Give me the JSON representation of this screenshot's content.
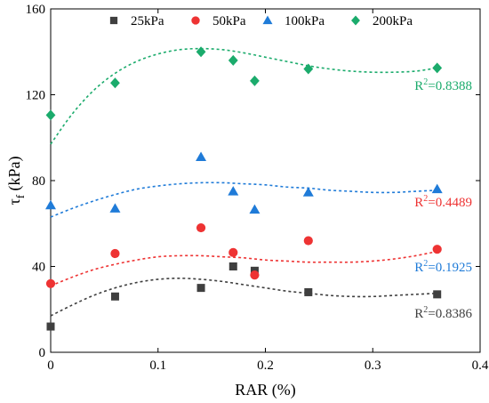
{
  "chart_data": {
    "type": "scatter",
    "xlabel": "RAR (%)",
    "ylabel": "τf (kPa)",
    "ylabel_main": "τ",
    "ylabel_sub": "f",
    "ylabel_unit": " (kPa)",
    "xlim": [
      0,
      0.4
    ],
    "ylim": [
      0,
      160
    ],
    "x_ticks": [
      "0",
      "0.1",
      "0.2",
      "0.3",
      "0.4"
    ],
    "y_ticks": [
      "0",
      "40",
      "80",
      "120",
      "160"
    ],
    "grid": false,
    "legend_position": "top",
    "series": [
      {
        "name": "25kPa",
        "marker": "square",
        "color": "#3f3f3f",
        "x": [
          0,
          0.06,
          0.14,
          0.17,
          0.19,
          0.24,
          0.36
        ],
        "y": [
          12,
          26,
          30,
          40,
          38,
          28,
          27
        ],
        "fit": [
          [
            0,
            17
          ],
          [
            0.02,
            22
          ],
          [
            0.04,
            26.5
          ],
          [
            0.06,
            30
          ],
          [
            0.08,
            32.5
          ],
          [
            0.1,
            34
          ],
          [
            0.12,
            34.5
          ],
          [
            0.14,
            34
          ],
          [
            0.16,
            33
          ],
          [
            0.18,
            31.5
          ],
          [
            0.2,
            30
          ],
          [
            0.22,
            28.5
          ],
          [
            0.24,
            27.5
          ],
          [
            0.26,
            26.5
          ],
          [
            0.28,
            26
          ],
          [
            0.3,
            26
          ],
          [
            0.32,
            26.5
          ],
          [
            0.34,
            27
          ],
          [
            0.36,
            27.5
          ]
        ],
        "r2_base": "R",
        "r2_exp": "2",
        "r2_value": "=0.8386"
      },
      {
        "name": "50kPa",
        "marker": "circle",
        "color": "#ee3333",
        "x": [
          0,
          0.06,
          0.14,
          0.17,
          0.19,
          0.24,
          0.36
        ],
        "y": [
          32,
          46,
          58,
          46.5,
          36,
          52,
          48
        ],
        "fit": [
          [
            0,
            31
          ],
          [
            0.02,
            35
          ],
          [
            0.04,
            38.5
          ],
          [
            0.06,
            41
          ],
          [
            0.08,
            43
          ],
          [
            0.1,
            44.5
          ],
          [
            0.12,
            45
          ],
          [
            0.14,
            45
          ],
          [
            0.16,
            44.5
          ],
          [
            0.18,
            44
          ],
          [
            0.2,
            43
          ],
          [
            0.22,
            42.5
          ],
          [
            0.24,
            42
          ],
          [
            0.26,
            42
          ],
          [
            0.28,
            42
          ],
          [
            0.3,
            42.5
          ],
          [
            0.32,
            43.5
          ],
          [
            0.34,
            45
          ],
          [
            0.36,
            47
          ]
        ],
        "r2_base": "R",
        "r2_exp": "2",
        "r2_value": "=0.4489"
      },
      {
        "name": "100kPa",
        "marker": "triangle",
        "color": "#1f7bd8",
        "x": [
          0,
          0.06,
          0.14,
          0.17,
          0.19,
          0.24,
          0.36
        ],
        "y": [
          68.5,
          67,
          91,
          75,
          66.5,
          74.5,
          76
        ],
        "fit": [
          [
            0,
            63
          ],
          [
            0.02,
            67
          ],
          [
            0.04,
            70.5
          ],
          [
            0.06,
            73.5
          ],
          [
            0.08,
            76
          ],
          [
            0.1,
            77.5
          ],
          [
            0.12,
            78.5
          ],
          [
            0.14,
            79
          ],
          [
            0.16,
            79
          ],
          [
            0.18,
            78.5
          ],
          [
            0.2,
            78
          ],
          [
            0.22,
            77
          ],
          [
            0.24,
            76.5
          ],
          [
            0.26,
            75.5
          ],
          [
            0.28,
            75
          ],
          [
            0.3,
            74.5
          ],
          [
            0.32,
            74.5
          ],
          [
            0.34,
            75
          ],
          [
            0.36,
            75.5
          ]
        ],
        "r2_base": "R",
        "r2_exp": "2",
        "r2_value": "=0.1925"
      },
      {
        "name": "200kPa",
        "marker": "diamond",
        "color": "#1bab6c",
        "x": [
          0,
          0.06,
          0.14,
          0.17,
          0.19,
          0.24,
          0.36
        ],
        "y": [
          110.5,
          125.5,
          140,
          136,
          126.5,
          132,
          132.5
        ],
        "fit": [
          [
            0,
            97
          ],
          [
            0.02,
            111
          ],
          [
            0.04,
            122
          ],
          [
            0.06,
            130
          ],
          [
            0.08,
            135.5
          ],
          [
            0.1,
            139
          ],
          [
            0.12,
            141
          ],
          [
            0.14,
            141.5
          ],
          [
            0.16,
            141
          ],
          [
            0.18,
            139.5
          ],
          [
            0.2,
            137.5
          ],
          [
            0.22,
            135.5
          ],
          [
            0.24,
            133.5
          ],
          [
            0.26,
            132
          ],
          [
            0.28,
            131
          ],
          [
            0.3,
            130.5
          ],
          [
            0.32,
            130.5
          ],
          [
            0.34,
            131
          ],
          [
            0.36,
            132.5
          ]
        ],
        "r2_base": "R",
        "r2_exp": "2",
        "r2_value": "=0.8388"
      }
    ]
  }
}
